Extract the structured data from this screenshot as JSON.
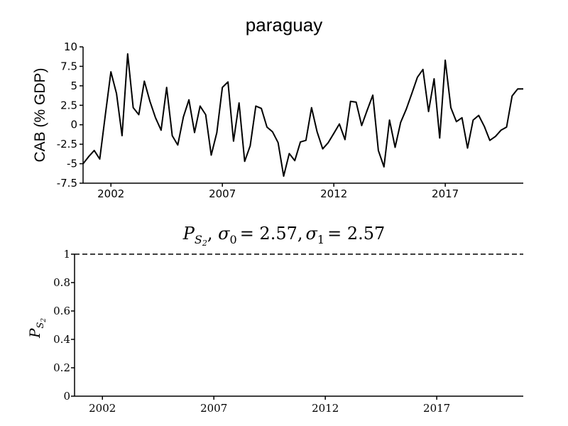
{
  "chart_data": [
    {
      "type": "line",
      "title": "paraguay",
      "ylabel": "CAB (% GDP)",
      "xlabel": "",
      "ylim": [
        -7.5,
        10
      ],
      "xlim": [
        2000.75,
        2020.5
      ],
      "yticks": [
        10,
        7.5,
        5,
        2.5,
        0,
        -2.5,
        -5,
        -7.5
      ],
      "ytick_labels": [
        "10",
        "7.5",
        "5",
        "2.5",
        "0",
        "-2.5",
        "-5",
        "-7.5"
      ],
      "xticks": [
        2002,
        2007,
        2012,
        2017
      ],
      "xtick_labels": [
        "2002",
        "2007",
        "2012",
        "2017"
      ],
      "color": "#000000",
      "series": [
        {
          "x": [
            2000.75,
            2001.0,
            2001.25,
            2001.5,
            2001.75,
            2002.0,
            2002.25,
            2002.5,
            2002.75,
            2003.0,
            2003.25,
            2003.5,
            2003.75,
            2004.0,
            2004.25,
            2004.5,
            2004.75,
            2005.0,
            2005.25,
            2005.5,
            2005.75,
            2006.0,
            2006.25,
            2006.5,
            2006.75,
            2007.0,
            2007.25,
            2007.5,
            2007.75,
            2008.0,
            2008.25,
            2008.5,
            2008.75,
            2009.0,
            2009.25,
            2009.5,
            2009.75,
            2010.0,
            2010.25,
            2010.5,
            2010.75,
            2011.0,
            2011.25,
            2011.5,
            2011.75,
            2012.0,
            2012.25,
            2012.5,
            2012.75,
            2013.0,
            2013.25,
            2013.5,
            2013.75,
            2014.0,
            2014.25,
            2014.5,
            2014.75,
            2015.0,
            2015.25,
            2015.5,
            2015.75,
            2016.0,
            2016.25,
            2016.5,
            2016.75,
            2017.0,
            2017.25,
            2017.5,
            2017.75,
            2018.0,
            2018.25,
            2018.5,
            2018.75,
            2019.0,
            2019.25,
            2019.5,
            2019.75,
            2020.0,
            2020.25,
            2020.5
          ],
          "values": [
            -5.0,
            -4.1,
            -3.3,
            -4.4,
            1.3,
            6.8,
            4.0,
            -1.4,
            9.1,
            2.2,
            1.3,
            5.6,
            3.0,
            0.9,
            -0.7,
            4.8,
            -1.4,
            -2.6,
            1.0,
            3.2,
            -1.0,
            2.4,
            1.3,
            -3.9,
            -1.0,
            4.8,
            5.5,
            -2.1,
            2.8,
            -4.7,
            -2.7,
            2.4,
            2.1,
            -0.3,
            -0.9,
            -2.3,
            -6.6,
            -3.7,
            -4.6,
            -2.2,
            -2.0,
            2.2,
            -0.9,
            -3.1,
            -2.3,
            -1.1,
            0.1,
            -1.9,
            3.0,
            2.9,
            -0.1,
            1.9,
            3.8,
            -3.3,
            -5.4,
            0.6,
            -2.9,
            0.3,
            2.0,
            4.0,
            6.1,
            7.1,
            1.7,
            5.9,
            -1.7,
            8.3,
            2.2,
            0.4,
            0.9,
            -3.0,
            0.6,
            1.2,
            -0.2,
            -2.0,
            -1.5,
            -0.7,
            -0.3,
            3.7,
            4.6,
            4.6
          ]
        }
      ]
    },
    {
      "type": "line",
      "title_parts": {
        "p": "P",
        "sub": "S",
        "subsub": "2",
        "s0": "σ",
        "s0sub": "0",
        "s0val": "= 2.57,",
        "s1": "σ",
        "s1sub": "1",
        "s1val": "= 2.57"
      },
      "ylabel": "P_S2",
      "ylim": [
        0,
        1
      ],
      "yticks": [
        0,
        0.2,
        0.4,
        0.6,
        0.8,
        1
      ],
      "ytick_labels": [
        "0",
        "0.2",
        "0.4",
        "0.6",
        "0.8",
        "1"
      ],
      "xticks": [
        2002,
        2007,
        2012,
        2017
      ],
      "xtick_labels": [
        "2002",
        "2007",
        "2012",
        "2017"
      ],
      "series": [
        {
          "style": "dashed",
          "x": [
            2000.75,
            2020.5
          ],
          "values": [
            1,
            1
          ]
        }
      ]
    }
  ]
}
